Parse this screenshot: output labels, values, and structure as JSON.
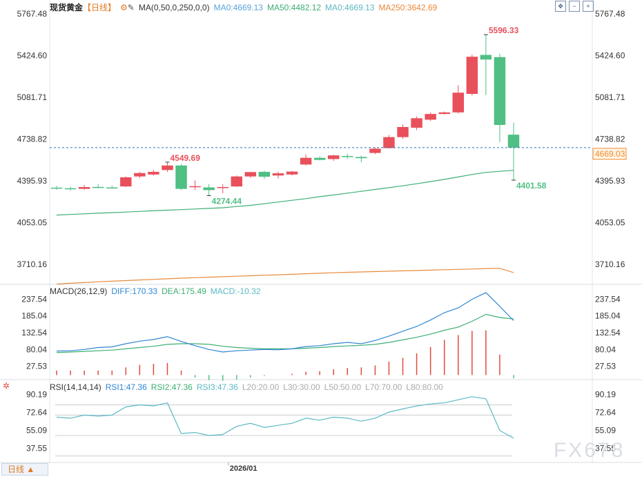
{
  "main_header": {
    "name": "现货黄金",
    "period": "【日线】",
    "indicator": "MA(0,50,0,250,0,0)",
    "ma1": "MA0:4669.13",
    "ma2": "MA50:4482.12",
    "ma3": "MA0:4669.13",
    "ma4": "MA250:3642.69"
  },
  "macd_header": {
    "name": "MACD(26,12,9)",
    "diff": "DIFF:170.33",
    "dea": "DEA:175.49",
    "macd": "MACD:-10.32"
  },
  "rsi_header": {
    "name": "RSI(14,14,14)",
    "rsi1": "RSI1:47.36",
    "rsi2": "RSI2:47.36",
    "rsi3": "RSI3:47.36",
    "l20": "L20:20.00",
    "l30": "L30:30.00",
    "l50": "L50:50.00",
    "l70": "L70:70.00",
    "l80": "L80:80.00"
  },
  "bottom_tab": "日线",
  "watermark": "FX678",
  "date_label": "2026/01",
  "colors": {
    "up": "#e8505b",
    "down": "#4fbf84",
    "ma50": "#3cae74",
    "ma250": "#e88a3a",
    "diff": "#2f86d4",
    "dea": "#3cae74",
    "macd_bar": "#e0493b",
    "rsi": "#5bb8c4",
    "price_tag": "#f28c28"
  },
  "chart_data": {
    "type": "candlestick",
    "title": "现货黄金【日线】",
    "price_axis": {
      "ticks": [
        5767.48,
        5424.6,
        5081.71,
        4738.82,
        4395.93,
        4053.05,
        3710.16
      ],
      "ylim": [
        3546.0,
        5767.48
      ]
    },
    "last_price": 4669.03,
    "annotations": [
      {
        "label": "5596.33",
        "value": 5596.33,
        "index": 31
      },
      {
        "label": "4549.69",
        "value": 4549.69,
        "index": 8
      },
      {
        "label": "4274.44",
        "value": 4274.44,
        "index": 11
      },
      {
        "label": "4401.58",
        "value": 4401.58,
        "index": 33
      }
    ],
    "candles": [
      {
        "o": 4340,
        "h": 4355,
        "l": 4325,
        "c": 4332
      },
      {
        "o": 4335,
        "h": 4350,
        "l": 4318,
        "c": 4330
      },
      {
        "o": 4330,
        "h": 4362,
        "l": 4325,
        "c": 4345
      },
      {
        "o": 4346,
        "h": 4368,
        "l": 4336,
        "c": 4342
      },
      {
        "o": 4342,
        "h": 4356,
        "l": 4332,
        "c": 4338
      },
      {
        "o": 4350,
        "h": 4432,
        "l": 4345,
        "c": 4425
      },
      {
        "o": 4432,
        "h": 4470,
        "l": 4418,
        "c": 4460
      },
      {
        "o": 4448,
        "h": 4486,
        "l": 4440,
        "c": 4470
      },
      {
        "o": 4485,
        "h": 4549.69,
        "l": 4470,
        "c": 4522
      },
      {
        "o": 4522,
        "h": 4535,
        "l": 4320,
        "c": 4330
      },
      {
        "o": 4345,
        "h": 4400,
        "l": 4322,
        "c": 4352
      },
      {
        "o": 4342,
        "h": 4370,
        "l": 4274.44,
        "c": 4320
      },
      {
        "o": 4338,
        "h": 4368,
        "l": 4295,
        "c": 4345
      },
      {
        "o": 4350,
        "h": 4440,
        "l": 4345,
        "c": 4432
      },
      {
        "o": 4432,
        "h": 4470,
        "l": 4420,
        "c": 4468
      },
      {
        "o": 4470,
        "h": 4478,
        "l": 4412,
        "c": 4430
      },
      {
        "o": 4440,
        "h": 4472,
        "l": 4416,
        "c": 4458
      },
      {
        "o": 4448,
        "h": 4478,
        "l": 4440,
        "c": 4472
      },
      {
        "o": 4530,
        "h": 4612,
        "l": 4522,
        "c": 4585
      },
      {
        "o": 4585,
        "h": 4598,
        "l": 4563,
        "c": 4568
      },
      {
        "o": 4575,
        "h": 4610,
        "l": 4560,
        "c": 4605
      },
      {
        "o": 4600,
        "h": 4618,
        "l": 4575,
        "c": 4594
      },
      {
        "o": 4592,
        "h": 4603,
        "l": 4548,
        "c": 4582
      },
      {
        "o": 4625,
        "h": 4670,
        "l": 4615,
        "c": 4660
      },
      {
        "o": 4665,
        "h": 4772,
        "l": 4660,
        "c": 4755
      },
      {
        "o": 4755,
        "h": 4860,
        "l": 4742,
        "c": 4838
      },
      {
        "o": 4832,
        "h": 4925,
        "l": 4812,
        "c": 4910
      },
      {
        "o": 4898,
        "h": 4958,
        "l": 4888,
        "c": 4945
      },
      {
        "o": 4945,
        "h": 4965,
        "l": 4940,
        "c": 4958
      },
      {
        "o": 4958,
        "h": 5180,
        "l": 4950,
        "c": 5120
      },
      {
        "o": 5110,
        "h": 5432,
        "l": 5098,
        "c": 5415
      },
      {
        "o": 5430,
        "h": 5596.33,
        "l": 5100,
        "c": 5392
      },
      {
        "o": 5412,
        "h": 5440,
        "l": 4715,
        "c": 4855
      },
      {
        "o": 4775,
        "h": 4875,
        "l": 4401.58,
        "c": 4669.03
      }
    ],
    "ma50": [
      4115,
      4120,
      4125,
      4130,
      4135,
      4140,
      4145,
      4150,
      4155,
      4160,
      4165,
      4170,
      4175,
      4185,
      4195,
      4208,
      4222,
      4236,
      4250,
      4266,
      4280,
      4295,
      4310,
      4325,
      4340,
      4355,
      4372,
      4390,
      4408,
      4428,
      4448,
      4465,
      4474,
      4482.12
    ],
    "ma250": [
      3548,
      3555,
      3561,
      3567,
      3572,
      3577,
      3582,
      3587,
      3592,
      3597,
      3601,
      3605,
      3609,
      3613,
      3617,
      3621,
      3625,
      3629,
      3633,
      3637,
      3641,
      3645,
      3648,
      3651,
      3654,
      3657,
      3660,
      3663,
      3666,
      3669,
      3672,
      3676,
      3678,
      3642.69
    ],
    "macd": {
      "ticks": [
        237.54,
        185.04,
        132.54,
        80.04,
        27.53
      ],
      "diff": [
        75,
        76,
        80,
        86,
        88,
        98,
        106,
        111,
        120,
        105,
        92,
        80,
        72,
        76,
        78,
        80,
        79,
        82,
        89,
        92,
        98,
        102,
        98,
        108,
        122,
        137,
        152,
        172,
        195,
        210,
        237,
        258,
        215,
        170.33
      ],
      "dea": [
        70,
        72,
        74,
        76,
        78,
        82,
        86,
        90,
        96,
        98,
        98,
        96,
        90,
        86,
        84,
        82,
        82,
        82,
        84,
        86,
        89,
        91,
        93,
        96,
        102,
        110,
        118,
        128,
        140,
        150,
        168,
        190,
        180,
        175.49
      ],
      "bar": [
        14,
        14,
        14,
        14,
        14,
        24,
        32,
        35,
        38,
        14,
        -8,
        -16,
        -18,
        -14,
        -8,
        -3,
        0,
        4,
        10,
        12,
        18,
        22,
        24,
        30,
        42,
        54,
        68,
        88,
        110,
        125,
        138,
        140,
        64,
        -10.32
      ]
    },
    "rsi": {
      "ticks": [
        90.19,
        72.64,
        55.09,
        37.55
      ],
      "values": [
        68,
        67,
        70,
        69,
        70,
        78,
        80,
        79,
        82,
        52,
        53,
        50,
        51,
        59,
        62,
        58,
        60,
        62,
        67,
        65,
        68,
        67,
        64,
        67,
        73,
        76,
        79,
        81,
        82,
        85,
        88,
        86,
        55,
        47.36
      ]
    }
  }
}
